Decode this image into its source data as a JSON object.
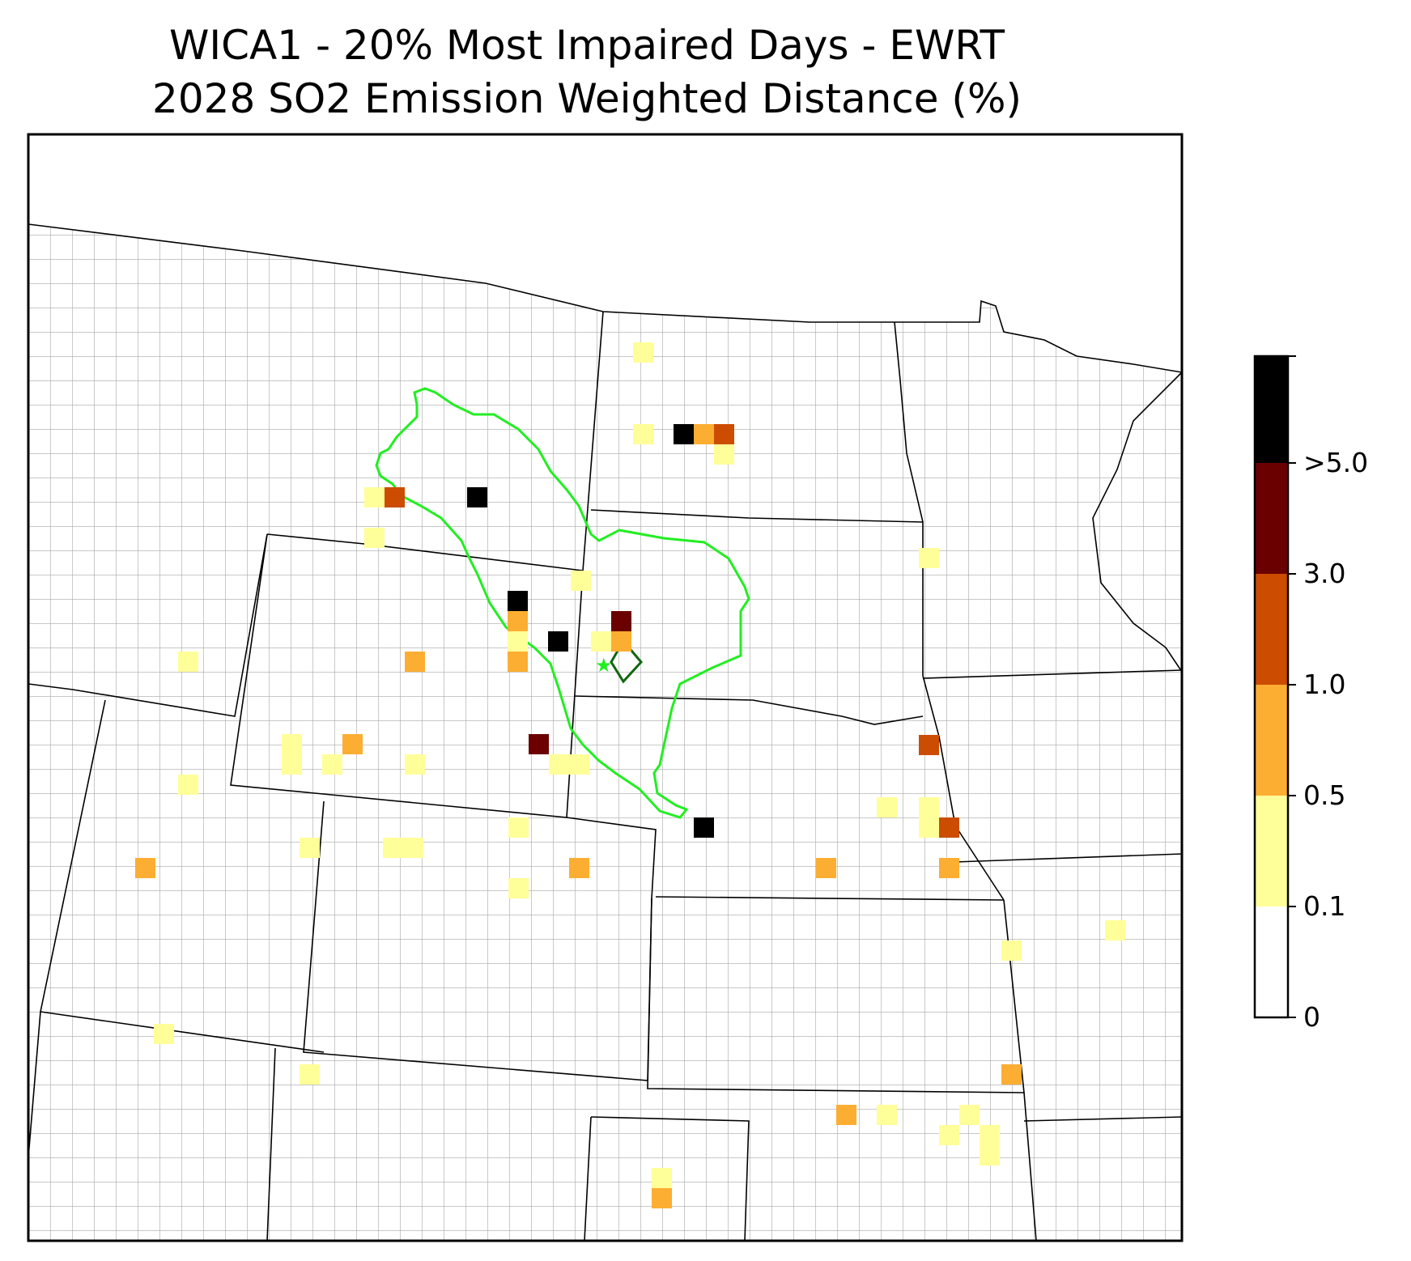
{
  "title": {
    "line1": "WICA1 - 20% Most Impaired Days - EWRT",
    "line2": "2028 SO2 Emission Weighted Distance (%)"
  },
  "colors": {
    "background": "#ffffff",
    "county_lines": "#a6a6a6",
    "state_lines": "#000000",
    "trajectory_contour": "#22ee22",
    "site_marker": "#116611"
  },
  "legend": {
    "bins": [
      {
        "label": "0",
        "color": "#ffffff"
      },
      {
        "label": "0.1",
        "color": "#ffff99"
      },
      {
        "label": "0.5",
        "color": "#fcae32"
      },
      {
        "label": "1.0",
        "color": "#cc4c02"
      },
      {
        "label": "3.0",
        "color": "#6b0000"
      },
      {
        "label": ">5.0",
        "color": "#000000"
      }
    ]
  },
  "markers": {
    "site": "diamond-icon",
    "source_location": "star-icon"
  }
}
